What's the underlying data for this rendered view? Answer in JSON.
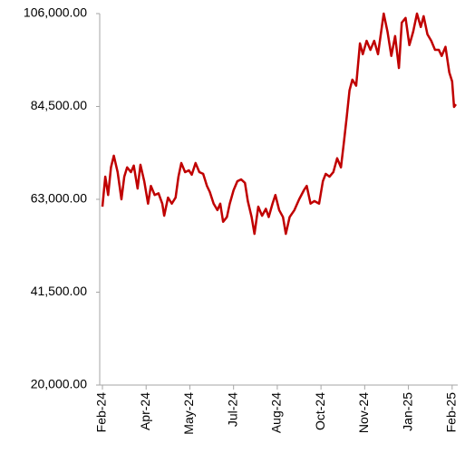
{
  "chart_data": {
    "type": "line",
    "x": [
      0,
      3,
      6,
      9,
      12,
      16,
      20,
      23,
      26,
      30,
      33,
      37,
      40,
      44,
      48,
      51,
      55,
      59,
      63,
      65,
      69,
      73,
      77,
      80,
      83,
      87,
      91,
      94,
      98,
      102,
      106,
      110,
      113,
      117,
      121,
      124,
      127,
      131,
      134,
      138,
      142,
      146,
      150,
      153,
      157,
      160,
      164,
      168,
      172,
      175,
      179,
      182,
      186,
      190,
      193,
      197,
      202,
      207,
      212,
      215,
      219,
      223,
      228,
      232,
      235,
      239,
      243,
      247,
      251,
      254,
      257,
      260,
      263,
      267,
      271,
      274,
      278,
      282,
      286,
      290,
      294,
      296,
      300,
      304,
      308,
      312,
      315,
      319,
      323,
      327,
      331,
      335,
      338,
      342,
      346,
      350,
      354,
      357,
      361,
      365,
      368,
      370,
      372
    ],
    "series": [
      {
        "color": "#c00000",
        "values": [
          61300,
          68250,
          64000,
          70400,
          73100,
          69300,
          63000,
          68250,
          70400,
          69300,
          70800,
          65500,
          71000,
          67200,
          62000,
          66100,
          64000,
          64400,
          62000,
          59200,
          63400,
          62000,
          63400,
          68250,
          71400,
          69300,
          69700,
          68700,
          71400,
          69300,
          68900,
          66100,
          64700,
          62000,
          60500,
          62000,
          57800,
          58900,
          62000,
          65100,
          67200,
          67600,
          66800,
          62600,
          58900,
          55000,
          61300,
          59200,
          60800,
          58900,
          62000,
          64000,
          60500,
          58900,
          55000,
          58900,
          60500,
          63000,
          65100,
          66100,
          62000,
          62600,
          62000,
          67200,
          68900,
          68250,
          69300,
          72500,
          70400,
          76000,
          81900,
          88200,
          90700,
          89300,
          99100,
          96600,
          99700,
          97600,
          99700,
          96600,
          102900,
          106000,
          101800,
          96200,
          100800,
          93400,
          103900,
          105000,
          98700,
          101800,
          106000,
          102900,
          105400,
          101200,
          99700,
          97600,
          97600,
          96200,
          98300,
          92400,
          90300,
          84400,
          85000
        ]
      }
    ],
    "xlim": [
      0,
      372
    ],
    "xticks": [
      {
        "value": 0,
        "label": "Feb-24"
      },
      {
        "value": 46,
        "label": "Apr-24"
      },
      {
        "value": 92,
        "label": "May-24"
      },
      {
        "value": 138,
        "label": "Jul-24"
      },
      {
        "value": 184,
        "label": "Aug-24"
      },
      {
        "value": 230,
        "label": "Oct-24"
      },
      {
        "value": 276,
        "label": "Nov-24"
      },
      {
        "value": 322,
        "label": "Jan-25"
      },
      {
        "value": 368,
        "label": "Feb-25"
      }
    ],
    "ylim": [
      20000,
      106000
    ],
    "yticks": [
      {
        "value": 20000,
        "label": "20,000.00"
      },
      {
        "value": 41500,
        "label": "41,500.00"
      },
      {
        "value": 63000,
        "label": "63,000.00"
      },
      {
        "value": 84500,
        "label": "84,500.00"
      },
      {
        "value": 106000,
        "label": "106,000.00"
      }
    ]
  }
}
